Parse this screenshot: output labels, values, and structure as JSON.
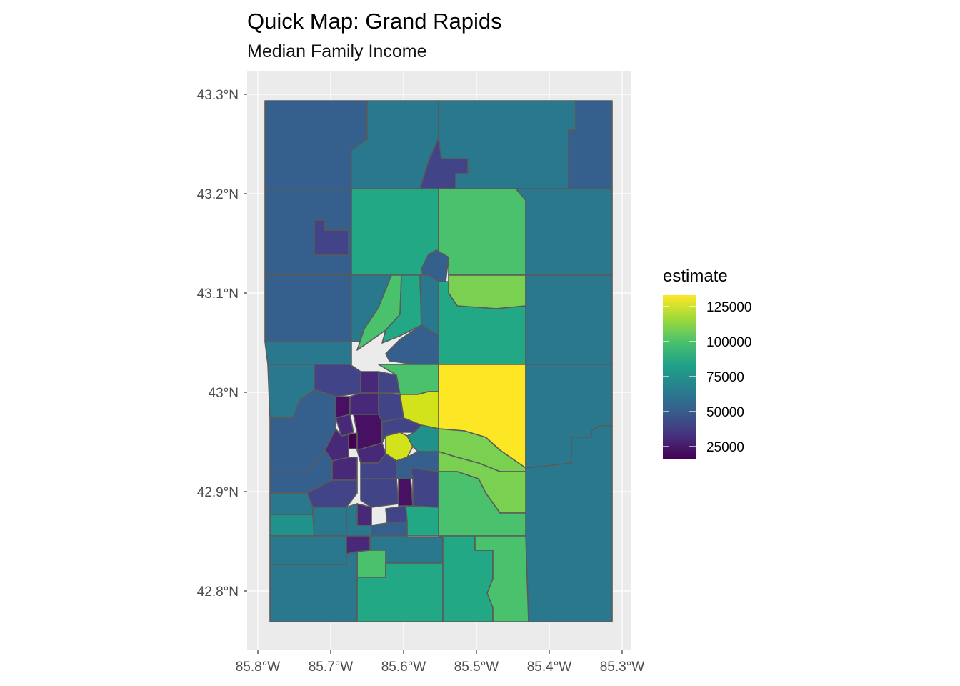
{
  "title": "Quick Map: Grand Rapids",
  "subtitle": "Median Family Income",
  "axes": {
    "y_labels": [
      "43.3°N",
      "43.2°N",
      "43.1°N",
      "43°N",
      "42.9°N",
      "42.8°N"
    ],
    "x_labels": [
      "85.8°W",
      "85.7°W",
      "85.6°W",
      "85.5°W",
      "85.4°W",
      "85.3°W"
    ]
  },
  "legend": {
    "title": "estimate",
    "labels": [
      "125000",
      "100000",
      "75000",
      "50000",
      "25000"
    ],
    "gradient": [
      "#fde725",
      "#a0da39",
      "#4ac16d",
      "#1fa187",
      "#277f8e",
      "#365c8d",
      "#46327e",
      "#440154"
    ]
  },
  "colors": {
    "panel_bg": "#ebebeb",
    "grid": "#ffffff",
    "tract_border": "#5a5a5a",
    "v_yellow": "#fde725",
    "v_lime": "#d2e21b",
    "v_lightgreen": "#7ad151",
    "v_green": "#4ac16d",
    "v_teal_green": "#22a884",
    "v_teal": "#21918c",
    "v_blue_teal": "#2a788e",
    "v_slate": "#355f8d",
    "v_blue": "#414487",
    "v_indigo": "#482878",
    "v_purple": "#471063",
    "v_darkpurple": "#440154"
  }
}
